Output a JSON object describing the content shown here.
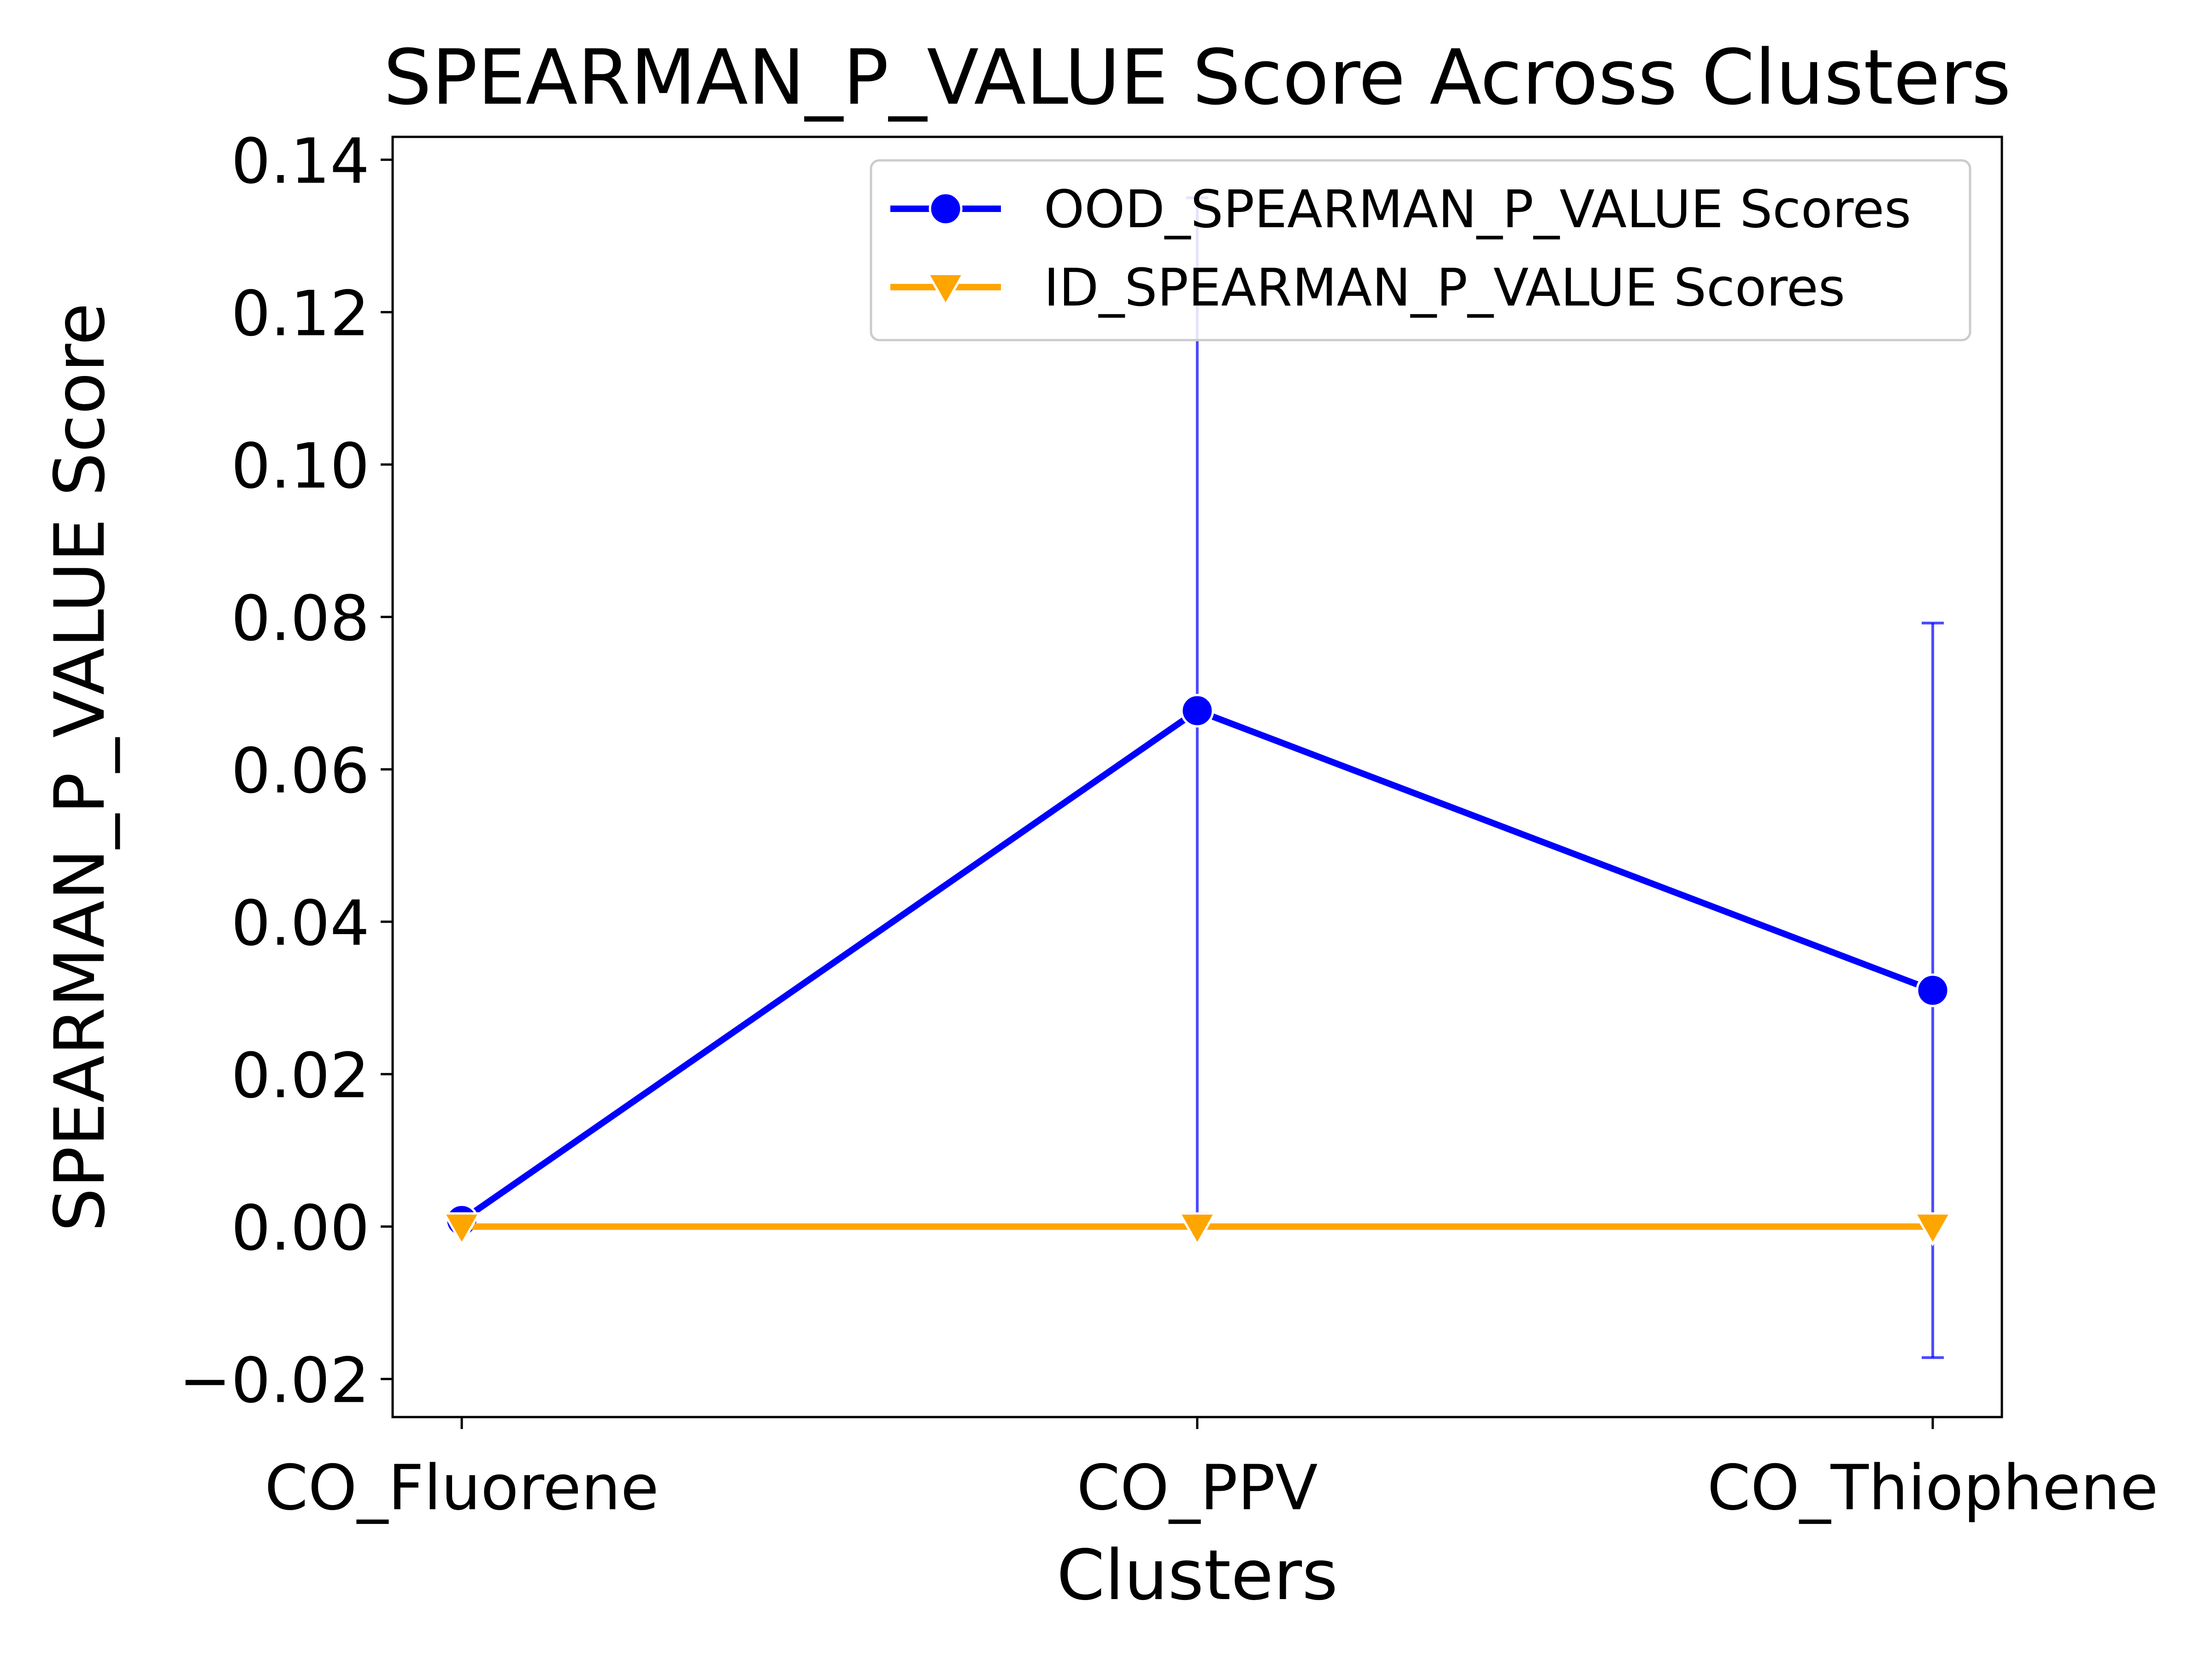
{
  "chart_data": {
    "type": "line",
    "title": "SPEARMAN_P_VALUE Score Across Clusters",
    "xlabel": "Clusters",
    "ylabel": "SPEARMAN_P_VALUE Score",
    "categories": [
      "CO_Fluorene",
      "CO_PPV",
      "CO_Thiophene"
    ],
    "ylim": [
      -0.025,
      0.143
    ],
    "yticks": [
      -0.02,
      0.0,
      0.02,
      0.04,
      0.06,
      0.08,
      0.1,
      0.12,
      0.14
    ],
    "ytick_labels": [
      "−0.02",
      "0.00",
      "0.02",
      "0.04",
      "0.06",
      "0.08",
      "0.10",
      "0.12",
      "0.14"
    ],
    "grid": false,
    "legend_position": "top-right",
    "series": [
      {
        "name": "OOD_SPEARMAN_P_VALUE Scores",
        "color": "#0000ff",
        "marker": "circle",
        "values": [
          0.0008,
          0.0677,
          0.031
        ],
        "error_low": [
          0.0008,
          0.0017,
          -0.0172
        ],
        "error_high": [
          0.0008,
          0.135,
          0.0792
        ]
      },
      {
        "name": "ID_SPEARMAN_P_VALUE Scores",
        "color": "#ffa500",
        "marker": "triangle-down",
        "values": [
          0.0,
          0.0,
          0.0
        ]
      }
    ]
  }
}
